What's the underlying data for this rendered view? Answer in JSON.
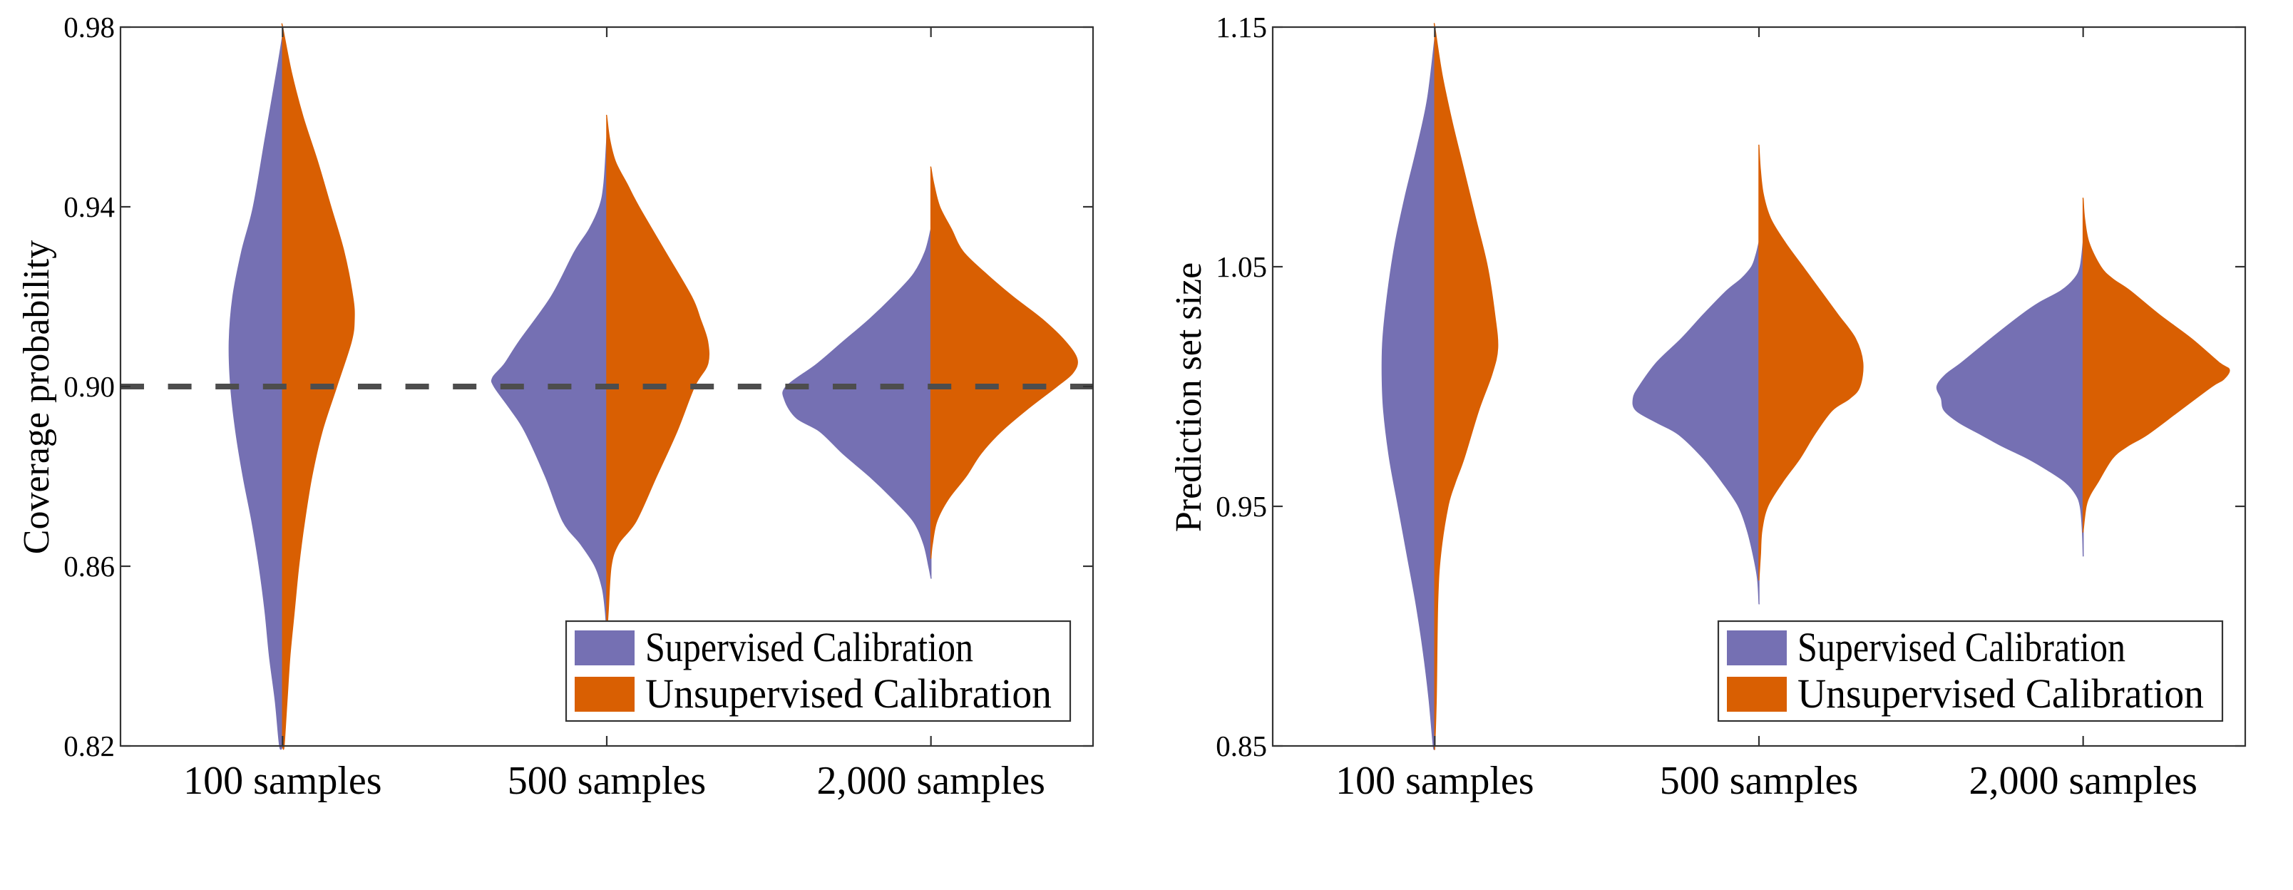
{
  "colors": {
    "supervised": "#7570b3",
    "unsupervised": "#d95f02",
    "reference_line": "#4d4d4d",
    "axis": "#333333"
  },
  "chart_data": [
    {
      "type": "violin",
      "split": true,
      "title": "",
      "xlabel": "",
      "ylabel": "Coverage probability",
      "ylim": [
        0.82,
        0.98
      ],
      "yticks": [
        0.82,
        0.86,
        0.9,
        0.94,
        0.98
      ],
      "ytick_labels": [
        "0.82",
        "0.86",
        "0.90",
        "0.94",
        "0.98"
      ],
      "categories": [
        "100 samples",
        "500 samples",
        "2,000 samples"
      ],
      "reference_line": {
        "y": 0.9,
        "style": "dashed"
      },
      "legend": {
        "placement": "bottom-right",
        "entries": [
          "Supervised Calibration",
          "Unsupervised Calibration"
        ]
      },
      "grid": false,
      "density_units": "relative (1.0 = widest half-violin across both panels)",
      "series": [
        {
          "name": "Supervised Calibration",
          "side": "left",
          "profiles": [
            [
              [
                0.978,
                0
              ],
              [
                0.97,
                0.04
              ],
              [
                0.955,
                0.12
              ],
              [
                0.94,
                0.2
              ],
              [
                0.93,
                0.28
              ],
              [
                0.92,
                0.34
              ],
              [
                0.91,
                0.365
              ],
              [
                0.9,
                0.355
              ],
              [
                0.89,
                0.32
              ],
              [
                0.88,
                0.27
              ],
              [
                0.87,
                0.21
              ],
              [
                0.86,
                0.16
              ],
              [
                0.85,
                0.12
              ],
              [
                0.84,
                0.09
              ],
              [
                0.83,
                0.05
              ],
              [
                0.82,
                0.02
              ]
            ],
            [
              [
                0.955,
                0
              ],
              [
                0.945,
                0.02
              ],
              [
                0.94,
                0.05
              ],
              [
                0.935,
                0.12
              ],
              [
                0.93,
                0.22
              ],
              [
                0.92,
                0.38
              ],
              [
                0.91,
                0.6
              ],
              [
                0.905,
                0.7
              ],
              [
                0.902,
                0.78
              ],
              [
                0.9,
                0.77
              ],
              [
                0.895,
                0.66
              ],
              [
                0.89,
                0.56
              ],
              [
                0.88,
                0.42
              ],
              [
                0.87,
                0.3
              ],
              [
                0.865,
                0.18
              ],
              [
                0.86,
                0.08
              ],
              [
                0.855,
                0.03
              ],
              [
                0.85,
                0.01
              ],
              [
                0.845,
                0
              ]
            ],
            [
              [
                0.935,
                0
              ],
              [
                0.93,
                0.04
              ],
              [
                0.925,
                0.12
              ],
              [
                0.92,
                0.26
              ],
              [
                0.915,
                0.42
              ],
              [
                0.91,
                0.6
              ],
              [
                0.905,
                0.78
              ],
              [
                0.9,
                0.99
              ],
              [
                0.897,
                1.0
              ],
              [
                0.893,
                0.92
              ],
              [
                0.89,
                0.76
              ],
              [
                0.885,
                0.6
              ],
              [
                0.88,
                0.42
              ],
              [
                0.875,
                0.26
              ],
              [
                0.87,
                0.12
              ],
              [
                0.865,
                0.05
              ],
              [
                0.86,
                0.015
              ],
              [
                0.8575,
                0
              ]
            ]
          ]
        },
        {
          "name": "Unsupervised Calibration",
          "side": "right",
          "profiles": [
            [
              [
                0.98,
                0
              ],
              [
                0.97,
                0.06
              ],
              [
                0.96,
                0.14
              ],
              [
                0.95,
                0.24
              ],
              [
                0.94,
                0.33
              ],
              [
                0.93,
                0.42
              ],
              [
                0.92,
                0.48
              ],
              [
                0.915,
                0.49
              ],
              [
                0.91,
                0.47
              ],
              [
                0.9,
                0.37
              ],
              [
                0.89,
                0.27
              ],
              [
                0.88,
                0.2
              ],
              [
                0.87,
                0.15
              ],
              [
                0.86,
                0.11
              ],
              [
                0.85,
                0.08
              ],
              [
                0.84,
                0.05
              ],
              [
                0.83,
                0.03
              ],
              [
                0.82,
                0.01
              ]
            ],
            [
              [
                0.96,
                0
              ],
              [
                0.955,
                0.02
              ],
              [
                0.95,
                0.06
              ],
              [
                0.945,
                0.14
              ],
              [
                0.94,
                0.22
              ],
              [
                0.93,
                0.4
              ],
              [
                0.92,
                0.58
              ],
              [
                0.915,
                0.64
              ],
              [
                0.91,
                0.69
              ],
              [
                0.905,
                0.69
              ],
              [
                0.9,
                0.6
              ],
              [
                0.89,
                0.48
              ],
              [
                0.88,
                0.34
              ],
              [
                0.87,
                0.2
              ],
              [
                0.865,
                0.08
              ],
              [
                0.86,
                0.03
              ],
              [
                0.85,
                0.01
              ],
              [
                0.845,
                0
              ]
            ],
            [
              [
                0.9486,
                0
              ],
              [
                0.945,
                0.02
              ],
              [
                0.94,
                0.06
              ],
              [
                0.935,
                0.14
              ],
              [
                0.93,
                0.22
              ],
              [
                0.925,
                0.38
              ],
              [
                0.92,
                0.56
              ],
              [
                0.915,
                0.76
              ],
              [
                0.91,
                0.92
              ],
              [
                0.906,
                1.0
              ],
              [
                0.903,
                0.97
              ],
              [
                0.9,
                0.86
              ],
              [
                0.895,
                0.66
              ],
              [
                0.89,
                0.48
              ],
              [
                0.885,
                0.34
              ],
              [
                0.88,
                0.24
              ],
              [
                0.875,
                0.12
              ],
              [
                0.87,
                0.04
              ],
              [
                0.865,
                0.01
              ],
              [
                0.862,
                0
              ]
            ]
          ]
        }
      ]
    },
    {
      "type": "violin",
      "split": true,
      "title": "",
      "xlabel": "",
      "ylabel": "Prediction set size",
      "ylim": [
        0.85,
        1.15
      ],
      "yticks": [
        0.85,
        0.95,
        1.05,
        1.15
      ],
      "ytick_labels": [
        "0.85",
        "0.95",
        "1.05",
        "1.15"
      ],
      "categories": [
        "100 samples",
        "500 samples",
        "2,000 samples"
      ],
      "legend": {
        "placement": "bottom-right",
        "entries": [
          "Supervised Calibration",
          "Unsupervised Calibration"
        ]
      },
      "grid": false,
      "density_units": "relative (1.0 = widest half-violin across both panels)",
      "series": [
        {
          "name": "Supervised Calibration",
          "side": "left",
          "profiles": [
            [
              [
                1.145,
                0
              ],
              [
                1.12,
                0.05
              ],
              [
                1.1,
                0.12
              ],
              [
                1.08,
                0.2
              ],
              [
                1.06,
                0.27
              ],
              [
                1.04,
                0.32
              ],
              [
                1.02,
                0.355
              ],
              [
                1.005,
                0.36
              ],
              [
                0.99,
                0.35
              ],
              [
                0.97,
                0.31
              ],
              [
                0.95,
                0.25
              ],
              [
                0.93,
                0.19
              ],
              [
                0.91,
                0.13
              ],
              [
                0.89,
                0.08
              ],
              [
                0.87,
                0.04
              ],
              [
                0.85,
                0.01
              ]
            ],
            [
              [
                1.06,
                0
              ],
              [
                1.055,
                0.02
              ],
              [
                1.05,
                0.05
              ],
              [
                1.045,
                0.12
              ],
              [
                1.04,
                0.22
              ],
              [
                1.03,
                0.38
              ],
              [
                1.02,
                0.53
              ],
              [
                1.01,
                0.7
              ],
              [
                1.0,
                0.82
              ],
              [
                0.995,
                0.86
              ],
              [
                0.99,
                0.84
              ],
              [
                0.985,
                0.7
              ],
              [
                0.98,
                0.55
              ],
              [
                0.97,
                0.38
              ],
              [
                0.96,
                0.25
              ],
              [
                0.95,
                0.14
              ],
              [
                0.94,
                0.08
              ],
              [
                0.93,
                0.04
              ],
              [
                0.92,
                0.01
              ],
              [
                0.91,
                0
              ]
            ],
            [
              [
                1.06,
                0
              ],
              [
                1.05,
                0.02
              ],
              [
                1.045,
                0.06
              ],
              [
                1.04,
                0.15
              ],
              [
                1.035,
                0.3
              ],
              [
                1.03,
                0.42
              ],
              [
                1.02,
                0.63
              ],
              [
                1.01,
                0.83
              ],
              [
                1.005,
                0.94
              ],
              [
                1.0,
                1.0
              ],
              [
                0.995,
                0.97
              ],
              [
                0.99,
                0.95
              ],
              [
                0.985,
                0.85
              ],
              [
                0.98,
                0.7
              ],
              [
                0.975,
                0.55
              ],
              [
                0.97,
                0.38
              ],
              [
                0.965,
                0.24
              ],
              [
                0.96,
                0.12
              ],
              [
                0.955,
                0.05
              ],
              [
                0.95,
                0.02
              ],
              [
                0.94,
                0.005
              ],
              [
                0.93,
                0
              ]
            ]
          ]
        },
        {
          "name": "Unsupervised Calibration",
          "side": "right",
          "profiles": [
            [
              [
                1.15,
                0
              ],
              [
                1.13,
                0.05
              ],
              [
                1.11,
                0.12
              ],
              [
                1.09,
                0.2
              ],
              [
                1.07,
                0.28
              ],
              [
                1.05,
                0.36
              ],
              [
                1.03,
                0.41
              ],
              [
                1.016,
                0.43
              ],
              [
                1.005,
                0.39
              ],
              [
                0.99,
                0.3
              ],
              [
                0.97,
                0.2
              ],
              [
                0.96,
                0.14
              ],
              [
                0.95,
                0.09
              ],
              [
                0.93,
                0.04
              ],
              [
                0.91,
                0.02
              ],
              [
                0.87,
                0.01
              ],
              [
                0.85,
                0
              ]
            ],
            [
              [
                1.1,
                0
              ],
              [
                1.09,
                0.01
              ],
              [
                1.08,
                0.03
              ],
              [
                1.07,
                0.08
              ],
              [
                1.06,
                0.18
              ],
              [
                1.05,
                0.3
              ],
              [
                1.04,
                0.42
              ],
              [
                1.03,
                0.54
              ],
              [
                1.02,
                0.66
              ],
              [
                1.01,
                0.71
              ],
              [
                1.0,
                0.69
              ],
              [
                0.995,
                0.62
              ],
              [
                0.99,
                0.5
              ],
              [
                0.98,
                0.38
              ],
              [
                0.97,
                0.28
              ],
              [
                0.96,
                0.16
              ],
              [
                0.95,
                0.06
              ],
              [
                0.94,
                0.02
              ],
              [
                0.93,
                0.01
              ],
              [
                0.92,
                0
              ]
            ],
            [
              [
                1.078,
                0
              ],
              [
                1.07,
                0.01
              ],
              [
                1.06,
                0.04
              ],
              [
                1.05,
                0.12
              ],
              [
                1.045,
                0.2
              ],
              [
                1.04,
                0.32
              ],
              [
                1.03,
                0.52
              ],
              [
                1.02,
                0.74
              ],
              [
                1.01,
                0.93
              ],
              [
                1.007,
                1.0
              ],
              [
                1.003,
                0.96
              ],
              [
                1.0,
                0.88
              ],
              [
                0.99,
                0.66
              ],
              [
                0.98,
                0.44
              ],
              [
                0.975,
                0.3
              ],
              [
                0.97,
                0.2
              ],
              [
                0.96,
                0.1
              ],
              [
                0.955,
                0.05
              ],
              [
                0.95,
                0.02
              ],
              [
                0.94,
                0
              ]
            ]
          ]
        }
      ]
    }
  ]
}
